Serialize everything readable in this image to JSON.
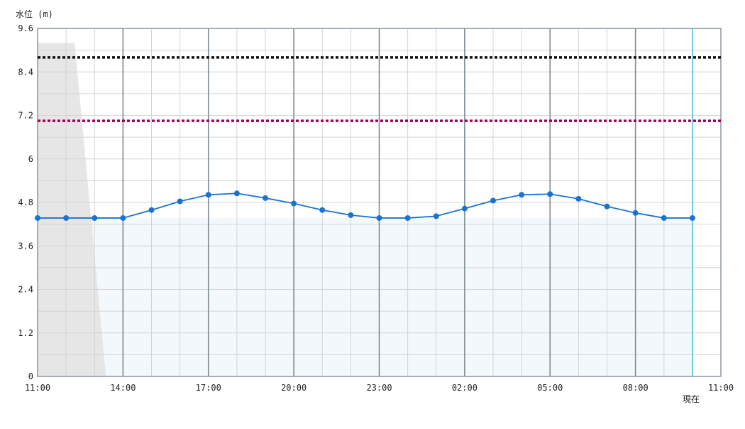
{
  "chart_data": {
    "type": "line",
    "ylabel": "水位 (m)",
    "ylim": [
      0,
      9.6
    ],
    "yticks": [
      "0",
      "1.2",
      "2.4",
      "3.6",
      "4.8",
      "6",
      "7.2",
      "8.4",
      "9.6"
    ],
    "x_hour_range": [
      0,
      24
    ],
    "xticks": [
      {
        "hour": 0,
        "label": "11:00"
      },
      {
        "hour": 3,
        "label": "14:00"
      },
      {
        "hour": 6,
        "label": "17:00"
      },
      {
        "hour": 9,
        "label": "20:00"
      },
      {
        "hour": 12,
        "label": "23:00"
      },
      {
        "hour": 15,
        "label": "02:00"
      },
      {
        "hour": 18,
        "label": "05:00"
      },
      {
        "hour": 21,
        "label": "08:00"
      },
      {
        "hour": 24,
        "label": "11:00"
      }
    ],
    "now": {
      "hour": 23,
      "label": "現在"
    },
    "grid": true,
    "series": [
      {
        "color": "#1a73d0",
        "x_hours": [
          0,
          1,
          2,
          3,
          4,
          5,
          6,
          7,
          8,
          9,
          10,
          11,
          12,
          13,
          14,
          15,
          16,
          17,
          18,
          19,
          20,
          21,
          22,
          23
        ],
        "values": [
          4.37,
          4.37,
          4.37,
          4.37,
          4.59,
          4.83,
          5.01,
          5.05,
          4.92,
          4.77,
          4.59,
          4.45,
          4.37,
          4.37,
          4.42,
          4.63,
          4.85,
          5.01,
          5.03,
          4.9,
          4.69,
          4.51,
          4.37,
          4.37
        ]
      }
    ],
    "thresholds": [
      {
        "value": 8.8,
        "color": "#111111"
      },
      {
        "value": 7.05,
        "color": "#a0005a"
      }
    ],
    "gray_region": {
      "points": [
        {
          "hour": 0,
          "value": 9.2
        },
        {
          "hour": 1.3,
          "value": 9.2
        },
        {
          "hour": 2.4,
          "value": 0
        },
        {
          "hour": 0,
          "value": 0
        }
      ],
      "color": "#e6e6e6"
    },
    "fill_color": "#f3f8fd"
  }
}
